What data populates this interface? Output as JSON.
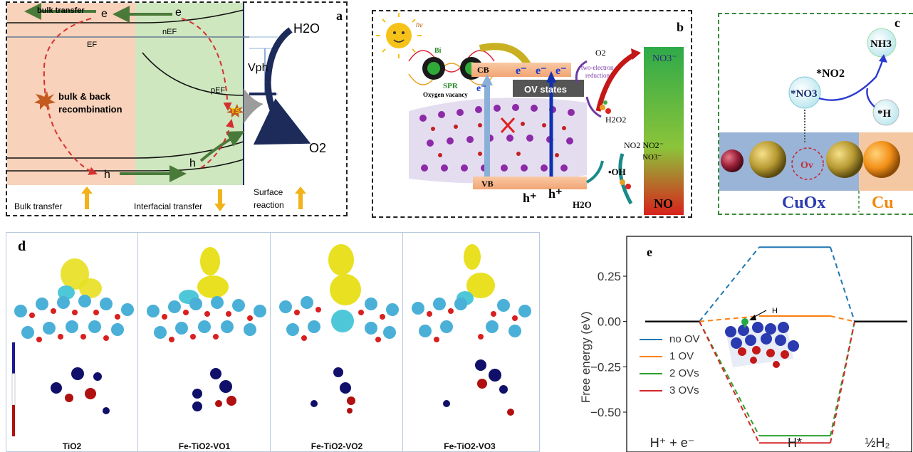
{
  "panel_a": {
    "tag": "a",
    "bulk_transfer_top": "bulk transfer",
    "e_left": "e",
    "e_right": "e",
    "nEF": "nEF",
    "EF": "EF",
    "Vph": "Vph",
    "pEF": "pEF",
    "H2O": "H2O",
    "O2": "O2",
    "recombination_line1": "bulk & back",
    "recombination_line2": "recombination",
    "ts": "TS",
    "h_left": "h",
    "h_right": "h",
    "bulk_transfer_bottom": "Bulk transfer",
    "interfacial_transfer": "Interfacial transfer",
    "surface_line1": "Surface",
    "surface_line2": "reaction"
  },
  "panel_b": {
    "tag": "b",
    "hv": "hν",
    "bi": "Bi",
    "spr": "SPR",
    "cb": "CB",
    "vb": "VB",
    "e_minus": "e⁻",
    "ov_states": "OV states",
    "oxygen_vacancy": "Oxygen vacancy",
    "o2": "O2",
    "two_electron_line1": "two-electron",
    "two_electron_line2": "reduction",
    "h2o2": "H2O2",
    "no3": "NO3⁻",
    "no2_line": "NO2 NO2⁻",
    "no3_2": "NO3⁻",
    "oh": "•OH",
    "h_plus": "h⁺",
    "h2o": "H2O",
    "no": "NO"
  },
  "panel_c": {
    "tag": "c",
    "nh3": "NH3",
    "no2": "*NO2",
    "no3": "*NO3",
    "h": "*H",
    "ov": "Ov",
    "cuox": "CuOx",
    "cu": "Cu"
  },
  "panel_d": {
    "tag": "d",
    "labels": [
      "TiO2",
      "Fe-TiO2-VO1",
      "Fe-TiO2-VO2",
      "Fe-TiO2-VO3"
    ]
  },
  "panel_e": {
    "tag": "e",
    "annotation": "H",
    "chart_data": {
      "type": "line",
      "ylabel": "Free energy (eV)",
      "categories": [
        "H⁺ + e⁻",
        "H*",
        "½H₂"
      ],
      "yticks": [
        0.25,
        0.0,
        -0.25,
        -0.5
      ],
      "ytick_labels": [
        "0.25",
        "0.00",
        "−0.25",
        "−0.50"
      ],
      "ylim": [
        -0.72,
        0.47
      ],
      "series": [
        {
          "name": "no OV",
          "color": "#1f77b4",
          "values": [
            0.0,
            0.41,
            0.0
          ]
        },
        {
          "name": "1 OV",
          "color": "#ff7f0e",
          "values": [
            0.0,
            0.03,
            0.0
          ]
        },
        {
          "name": "2 OVs",
          "color": "#2ca02c",
          "values": [
            0.0,
            -0.63,
            0.0
          ]
        },
        {
          "name": "3 OVs",
          "color": "#d62728",
          "values": [
            0.0,
            -0.67,
            0.0
          ]
        }
      ]
    }
  }
}
